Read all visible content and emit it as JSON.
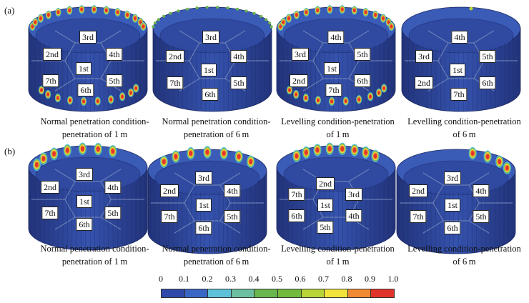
{
  "rows": [
    {
      "label": "(a)",
      "panels": [
        {
          "caption": [
            "Normal penetration condition-",
            "penetration of 1 m"
          ],
          "compartments": [
            "3rd",
            "2nd",
            "4th",
            "1st",
            "7th",
            "5th",
            "6th"
          ]
        },
        {
          "caption": [
            "Normal penetration condition-",
            "penetration of 6 m"
          ],
          "compartments": [
            "3rd",
            "2nd",
            "4th",
            "1st",
            "7th",
            "5th",
            "6th"
          ]
        },
        {
          "caption": [
            "Levelling condition-penetration",
            "of 1 m"
          ],
          "compartments": [
            "4th",
            "3rd",
            "5th",
            "1st",
            "2nd",
            "6th",
            "7th"
          ]
        },
        {
          "caption": [
            "Levelling condition-penetration",
            "of 6 m"
          ],
          "compartments": [
            "4th",
            "3rd",
            "5th",
            "1st",
            "2nd",
            "6th",
            "7th"
          ]
        }
      ]
    },
    {
      "label": "(b)",
      "panels": [
        {
          "caption": [
            "Normal penetration condition-",
            "penetration of 1 m"
          ],
          "compartments": [
            "3rd",
            "2nd",
            "4th",
            "1st",
            "7th",
            "5th",
            "6th"
          ]
        },
        {
          "caption": [
            "Normal penetration condition-",
            "penetration of 6 m"
          ],
          "compartments": [
            "3rd",
            "2nd",
            "4th",
            "1st",
            "7th",
            "5th",
            "6th"
          ]
        },
        {
          "caption": [
            "Levelling condition-penetration",
            "of 1 m"
          ],
          "compartments": [
            "2nd",
            "7th",
            "3rd",
            "1st",
            "6th",
            "4th",
            "5th"
          ]
        },
        {
          "caption": [
            "Levelling condition-penetration",
            "of 6 m"
          ],
          "compartments": [
            "3rd",
            "2nd",
            "4th",
            "1st",
            "7th",
            "5th",
            "6th"
          ]
        }
      ]
    }
  ],
  "colorbar": {
    "ticks": [
      "0",
      "0.1",
      "0.2",
      "0.3",
      "0.4",
      "0.5",
      "0.6",
      "0.7",
      "0.8",
      "0.9",
      "1.0"
    ],
    "colors": [
      "#2f4aa8",
      "#3a66c4",
      "#5fc1d9",
      "#6dbfa2",
      "#6ab64e",
      "#72ba3c",
      "#b9d438",
      "#f2e43a",
      "#f08a32",
      "#e0342b"
    ]
  }
}
